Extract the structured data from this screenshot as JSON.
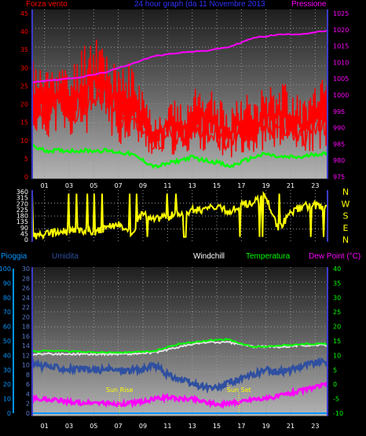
{
  "header_top": {
    "left_label": "Forza vento",
    "center_label": "24 hour graph (da 11 Novembre 2013",
    "right_label": "Pressione"
  },
  "header_bottom": {
    "rain_label": "Pioggia",
    "humidity_label": "Umidita",
    "windchill_label": "Windchill",
    "temp_label": "Temperatura",
    "dew_label": "Dew Point (°C)"
  },
  "colors": {
    "wind": "#ff0000",
    "pressure": "#ff00ff",
    "direction": "#ffff00",
    "temperature": "#00ff00",
    "humidity": "#2f4fa0",
    "windchill": "#ffffff",
    "dew": "#ff00ff",
    "rain": "#0096ff",
    "sun_label": "#ffff00",
    "frame": "#3c3ccc"
  },
  "chart_data": [
    {
      "type": "line",
      "name": "wind-pressure",
      "x_ticks": [
        "01",
        "03",
        "05",
        "07",
        "09",
        "11",
        "13",
        "15",
        "17",
        "19",
        "21",
        "23"
      ],
      "left_axis": {
        "ylim": [
          0,
          45
        ],
        "ticks": [
          0,
          5,
          10,
          15,
          20,
          25,
          30,
          35,
          40,
          45
        ]
      },
      "right_axis": {
        "ylim": [
          975,
          1025
        ],
        "ticks": [
          975,
          980,
          985,
          990,
          995,
          1000,
          1005,
          1010,
          1015,
          1020,
          1025
        ]
      },
      "series": [
        {
          "name": "Forza vento",
          "axis": "left",
          "x": [
            0,
            1,
            2,
            3,
            4,
            5,
            6,
            7,
            8,
            9,
            10,
            11,
            12,
            13,
            14,
            15,
            16,
            17,
            18,
            19,
            20,
            21,
            22,
            23,
            24
          ],
          "values": [
            20,
            18,
            22,
            17,
            19,
            21,
            23,
            16,
            17,
            13,
            9,
            11,
            10,
            12,
            13,
            11,
            9,
            12,
            11,
            13,
            14,
            12,
            11,
            13,
            14
          ]
        },
        {
          "name": "Forza vento (picco)",
          "axis": "left",
          "x": [
            0,
            1,
            2,
            3,
            4,
            5,
            6,
            7,
            8,
            9,
            10,
            11,
            12,
            13,
            14,
            15,
            16,
            17,
            18,
            19,
            20,
            21,
            22,
            23,
            24
          ],
          "values": [
            33,
            30,
            34,
            29,
            37,
            42,
            38,
            29,
            33,
            24,
            17,
            23,
            20,
            24,
            27,
            22,
            19,
            25,
            21,
            27,
            27,
            26,
            22,
            25,
            28
          ]
        },
        {
          "name": "Pressione",
          "axis": "right",
          "x": [
            0,
            2,
            4,
            6,
            8,
            10,
            12,
            14,
            16,
            18,
            20,
            22,
            24
          ],
          "values": [
            1004,
            1004.7,
            1005.5,
            1007,
            1009.5,
            1012,
            1013,
            1013.5,
            1014.7,
            1017.5,
            1018.5,
            1018.7,
            1019.7
          ]
        },
        {
          "name": "Temperatura",
          "axis": "right",
          "x": [
            0,
            1,
            2,
            3,
            4,
            5,
            6,
            7,
            8,
            9,
            10,
            11,
            12,
            13,
            14,
            15,
            16,
            17,
            18,
            19,
            20,
            21,
            22,
            23,
            24
          ],
          "values": [
            984.5,
            983,
            983,
            983,
            983,
            983,
            983,
            982.5,
            982,
            980,
            978,
            979,
            980,
            981,
            980,
            979.5,
            978,
            979.5,
            981,
            982,
            981,
            981,
            981,
            982,
            982
          ]
        }
      ]
    },
    {
      "type": "line",
      "name": "direzione",
      "ylim": [
        0,
        360
      ],
      "ticks": [
        0,
        45,
        90,
        135,
        180,
        225,
        270,
        315,
        360
      ],
      "compass": [
        "N",
        "W",
        "S",
        "E",
        "N"
      ],
      "x": [
        0,
        1,
        2,
        3,
        4,
        5,
        6,
        7,
        8,
        9,
        10,
        11,
        12,
        13,
        14,
        15,
        16,
        17,
        18,
        19,
        20,
        21,
        22,
        23,
        24
      ],
      "values": [
        30,
        35,
        55,
        60,
        70,
        60,
        80,
        120,
        40,
        200,
        150,
        170,
        200,
        220,
        230,
        240,
        210,
        260,
        280,
        330,
        80,
        200,
        250,
        260,
        230
      ]
    },
    {
      "type": "line",
      "name": "temperature-humidity",
      "left_rain_axis": {
        "ylim": [
          0,
          100
        ],
        "ticks": [
          0,
          10,
          20,
          30,
          40,
          50,
          60,
          70,
          80,
          90,
          100
        ]
      },
      "left_hum_axis": {
        "ylim": [
          0,
          30
        ],
        "ticks": [
          0,
          2,
          4,
          6,
          8,
          10,
          12,
          14,
          16,
          18,
          20,
          22,
          24,
          26,
          28,
          30
        ]
      },
      "right_axis": {
        "ylim": [
          -10,
          40
        ],
        "ticks": [
          -10,
          -5,
          0,
          5,
          10,
          15,
          20,
          25,
          30,
          35,
          40
        ]
      },
      "annotations": [
        "Sun Rise",
        "Sun Set"
      ],
      "x_ticks": [
        "01",
        "03",
        "05",
        "07",
        "09",
        "11",
        "13",
        "15",
        "17",
        "19",
        "21",
        "23"
      ],
      "series": [
        {
          "name": "Temperatura",
          "x": [
            0,
            2,
            4,
            6,
            8,
            10,
            11,
            12,
            13,
            14,
            15,
            16,
            17,
            18,
            19,
            20,
            21,
            22,
            23,
            24
          ],
          "values": [
            11.5,
            11.5,
            11.3,
            11,
            11,
            11.5,
            13,
            14,
            14.5,
            15,
            15.5,
            15.5,
            14,
            13,
            13,
            13.5,
            13.5,
            14,
            14,
            14
          ]
        },
        {
          "name": "Umidita",
          "x": [
            0,
            2,
            4,
            6,
            8,
            9,
            10,
            11,
            12,
            13,
            14,
            15,
            16,
            17,
            18,
            19,
            20,
            21,
            22,
            23,
            24
          ],
          "values": [
            10,
            9.5,
            9,
            9,
            9,
            9,
            10,
            8,
            7,
            6,
            5.5,
            5,
            6.5,
            7,
            8,
            9,
            8.5,
            9,
            10,
            10.5,
            10.5
          ]
        },
        {
          "name": "Windchill",
          "x": [
            0,
            2,
            4,
            6,
            8,
            10,
            12,
            14,
            16,
            18,
            20,
            22,
            24
          ],
          "values": [
            10.5,
            10.5,
            10.5,
            10.5,
            10.5,
            11,
            13,
            14.5,
            14.5,
            13,
            13,
            13.5,
            13.5
          ]
        },
        {
          "name": "Dew Point",
          "x": [
            0,
            2,
            4,
            6,
            7,
            8,
            9,
            10,
            11,
            12,
            13,
            14,
            15,
            16,
            17,
            18,
            19,
            20,
            21,
            22,
            23,
            24
          ],
          "values": [
            -5,
            -5.5,
            -6.5,
            -6.5,
            -7,
            -6.5,
            -6,
            -5,
            -4.5,
            -5,
            -5,
            -6,
            -7,
            -6.5,
            -6,
            -5,
            -5,
            -4,
            -3,
            -2,
            -1,
            0
          ]
        },
        {
          "name": "Pioggia",
          "x": [
            0,
            24
          ],
          "values": [
            0,
            0
          ]
        }
      ]
    }
  ]
}
